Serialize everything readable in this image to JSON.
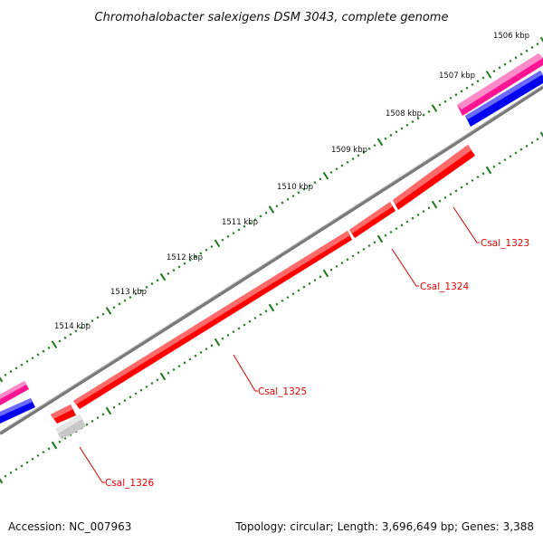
{
  "title": "Chromohalobacter salexigens DSM 3043, complete genome",
  "footer": {
    "accession": "Accession: NC_007963",
    "topology": "Topology: circular; Length: 3,696,649 bp; Genes: 3,388"
  },
  "ticks": [
    {
      "label": "1506 kbp"
    },
    {
      "label": "1507 kbp"
    },
    {
      "label": "1508 kbp"
    },
    {
      "label": "1509 kbp"
    },
    {
      "label": "1510 kbp"
    },
    {
      "label": "1511 kbp"
    },
    {
      "label": "1512 kbp"
    },
    {
      "label": "1513 kbp"
    },
    {
      "label": "1514 kbp"
    }
  ],
  "genes": [
    {
      "name": "Csal_1323"
    },
    {
      "name": "Csal_1324"
    },
    {
      "name": "Csal_1325"
    },
    {
      "name": "Csal_1326"
    }
  ],
  "colors": {
    "backbone": "#7a7a7a",
    "gene_forward": "#ff0000",
    "gene_pseudo": "#c8c8c8",
    "feature_pink": "#ff1493",
    "feature_blue": "#0000ee",
    "tick": "#1a7a1a",
    "label_line": "#e00000"
  }
}
